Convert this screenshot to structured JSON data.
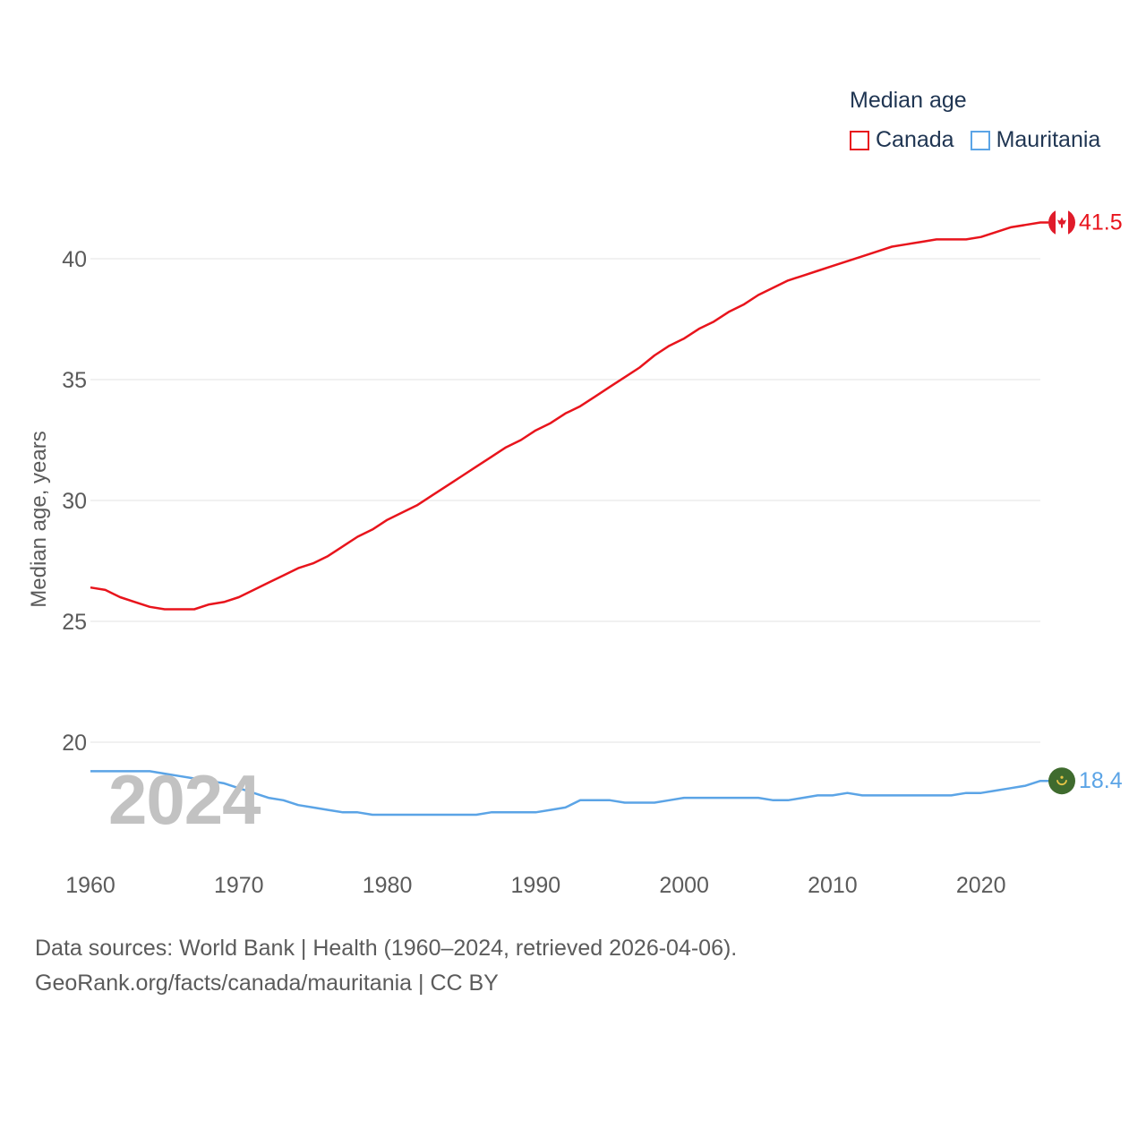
{
  "legend": {
    "title": "Median age",
    "items": [
      {
        "name": "Canada",
        "color": "#e8141c"
      },
      {
        "name": "Mauritania",
        "color": "#5ba4e6"
      }
    ]
  },
  "watermark_year": "2024",
  "footer": {
    "line1": "Data sources: World Bank | Health (1960–2024, retrieved 2026-04-06).",
    "line2": "GeoRank.org/facts/canada/mauritania | CC BY"
  },
  "chart_data": {
    "type": "line",
    "title": "Median age",
    "xlabel": "",
    "ylabel": "Median age, years",
    "xlim": [
      1960,
      2024
    ],
    "ylim": [
      15,
      42
    ],
    "x_ticks": [
      1960,
      1970,
      1980,
      1990,
      2000,
      2010,
      2020
    ],
    "y_ticks": [
      20,
      25,
      30,
      35,
      40
    ],
    "grid": true,
    "x": [
      1960,
      1961,
      1962,
      1963,
      1964,
      1965,
      1966,
      1967,
      1968,
      1969,
      1970,
      1971,
      1972,
      1973,
      1974,
      1975,
      1976,
      1977,
      1978,
      1979,
      1980,
      1981,
      1982,
      1983,
      1984,
      1985,
      1986,
      1987,
      1988,
      1989,
      1990,
      1991,
      1992,
      1993,
      1994,
      1995,
      1996,
      1997,
      1998,
      1999,
      2000,
      2001,
      2002,
      2003,
      2004,
      2005,
      2006,
      2007,
      2008,
      2009,
      2010,
      2011,
      2012,
      2013,
      2014,
      2015,
      2016,
      2017,
      2018,
      2019,
      2020,
      2021,
      2022,
      2023,
      2024
    ],
    "series": [
      {
        "name": "Canada",
        "color": "#e8141c",
        "end_label": "41.5",
        "flag": "canada-flag-icon",
        "values": [
          26.4,
          26.3,
          26.0,
          25.8,
          25.6,
          25.5,
          25.5,
          25.5,
          25.7,
          25.8,
          26.0,
          26.3,
          26.6,
          26.9,
          27.2,
          27.4,
          27.7,
          28.1,
          28.5,
          28.8,
          29.2,
          29.5,
          29.8,
          30.2,
          30.6,
          31.0,
          31.4,
          31.8,
          32.2,
          32.5,
          32.9,
          33.2,
          33.6,
          33.9,
          34.3,
          34.7,
          35.1,
          35.5,
          36.0,
          36.4,
          36.7,
          37.1,
          37.4,
          37.8,
          38.1,
          38.5,
          38.8,
          39.1,
          39.3,
          39.5,
          39.7,
          39.9,
          40.1,
          40.3,
          40.5,
          40.6,
          40.7,
          40.8,
          40.8,
          40.8,
          40.9,
          41.1,
          41.3,
          41.4,
          41.5
        ]
      },
      {
        "name": "Mauritania",
        "color": "#5ba4e6",
        "end_label": "18.4",
        "flag": "mauritania-flag-icon",
        "values": [
          18.8,
          18.8,
          18.8,
          18.8,
          18.8,
          18.7,
          18.6,
          18.5,
          18.4,
          18.3,
          18.1,
          17.9,
          17.7,
          17.6,
          17.4,
          17.3,
          17.2,
          17.1,
          17.1,
          17.0,
          17.0,
          17.0,
          17.0,
          17.0,
          17.0,
          17.0,
          17.0,
          17.1,
          17.1,
          17.1,
          17.1,
          17.2,
          17.3,
          17.6,
          17.6,
          17.6,
          17.5,
          17.5,
          17.5,
          17.6,
          17.7,
          17.7,
          17.7,
          17.7,
          17.7,
          17.7,
          17.6,
          17.6,
          17.7,
          17.8,
          17.8,
          17.9,
          17.8,
          17.8,
          17.8,
          17.8,
          17.8,
          17.8,
          17.8,
          17.9,
          17.9,
          18.0,
          18.1,
          18.2,
          18.4
        ]
      }
    ]
  }
}
